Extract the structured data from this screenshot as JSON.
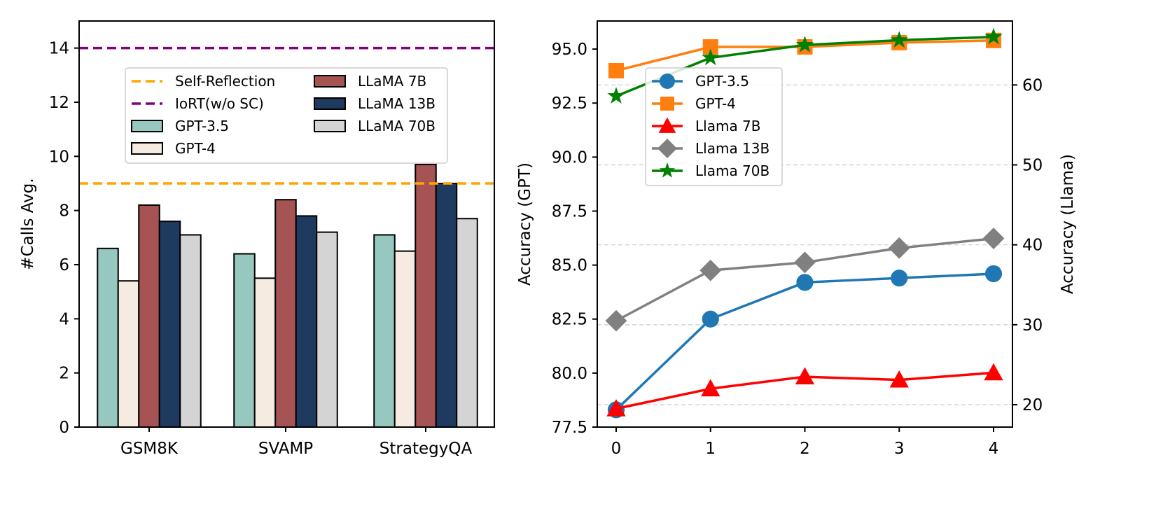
{
  "chart_data": [
    {
      "type": "bar",
      "ylabel": "#Calls Avg.",
      "xlabel": "",
      "categories": [
        "GSM8K",
        "SVAMP",
        "StrategyQA"
      ],
      "ylim": [
        0,
        15
      ],
      "yticks": [
        0,
        2,
        4,
        6,
        8,
        10,
        12,
        14
      ],
      "grid": false,
      "legend_position": "upper-center",
      "series": [
        {
          "name": "GPT-3.5",
          "values": [
            6.6,
            6.4,
            7.1
          ],
          "color": "#96c8c0"
        },
        {
          "name": "GPT-4",
          "values": [
            5.4,
            5.5,
            6.5
          ],
          "color": "#f5ebe1"
        },
        {
          "name": "LLaMA 7B",
          "values": [
            8.2,
            8.4,
            9.7
          ],
          "color": "#a65353"
        },
        {
          "name": "LLaMA 13B",
          "values": [
            7.6,
            7.8,
            9.0
          ],
          "color": "#1f3a5f"
        },
        {
          "name": "LLaMA 70B",
          "values": [
            7.1,
            7.2,
            7.7
          ],
          "color": "#d4d4d4"
        }
      ],
      "reference_lines": [
        {
          "name": "Self-Reflection",
          "value": 9,
          "color": "#ffa500",
          "style": "dashed"
        },
        {
          "name": "IoRT(w/o SC)",
          "value": 14,
          "color": "#800080",
          "style": "dashed"
        }
      ],
      "legend_order": [
        "Self-Reflection",
        "IoRT(w/o SC)",
        "GPT-3.5",
        "GPT-4",
        "LLaMA 7B",
        "LLaMA 13B",
        "LLaMA 70B"
      ]
    },
    {
      "type": "line",
      "xlabel": "",
      "ylabel": "Accuracy (GPT)",
      "ylabel_right": "Accuracy (Llama)",
      "x": [
        0,
        1,
        2,
        3,
        4
      ],
      "ylim": [
        77.5,
        96.3
      ],
      "yticks": [
        77.5,
        80.0,
        82.5,
        85.0,
        87.5,
        90.0,
        92.5,
        95.0
      ],
      "ylim_right": [
        17.2,
        68
      ],
      "yticks_right": [
        20,
        30,
        40,
        50,
        60
      ],
      "grid": "horizontal dashed on right axis",
      "legend_position": "upper-left",
      "series": [
        {
          "name": "GPT-3.5",
          "axis": "left",
          "values": [
            78.3,
            82.5,
            84.2,
            84.4,
            84.6
          ],
          "color": "#1f77b4",
          "marker": "circle"
        },
        {
          "name": "GPT-4",
          "axis": "left",
          "values": [
            94.0,
            95.1,
            95.1,
            95.3,
            95.4
          ],
          "color": "#ff7f0e",
          "marker": "square"
        },
        {
          "name": "Llama 7B",
          "axis": "right",
          "values": [
            19.5,
            22.0,
            23.5,
            23.1,
            24.0
          ],
          "color": "#ff0000",
          "marker": "triangle"
        },
        {
          "name": "Llama 13B",
          "axis": "right",
          "values": [
            30.5,
            36.8,
            37.8,
            39.6,
            40.8
          ],
          "color": "#808080",
          "marker": "diamond"
        },
        {
          "name": "Llama 70B",
          "axis": "right",
          "values": [
            58.6,
            63.4,
            65.0,
            65.6,
            66.0
          ],
          "color": "#008000",
          "marker": "star"
        }
      ]
    }
  ]
}
